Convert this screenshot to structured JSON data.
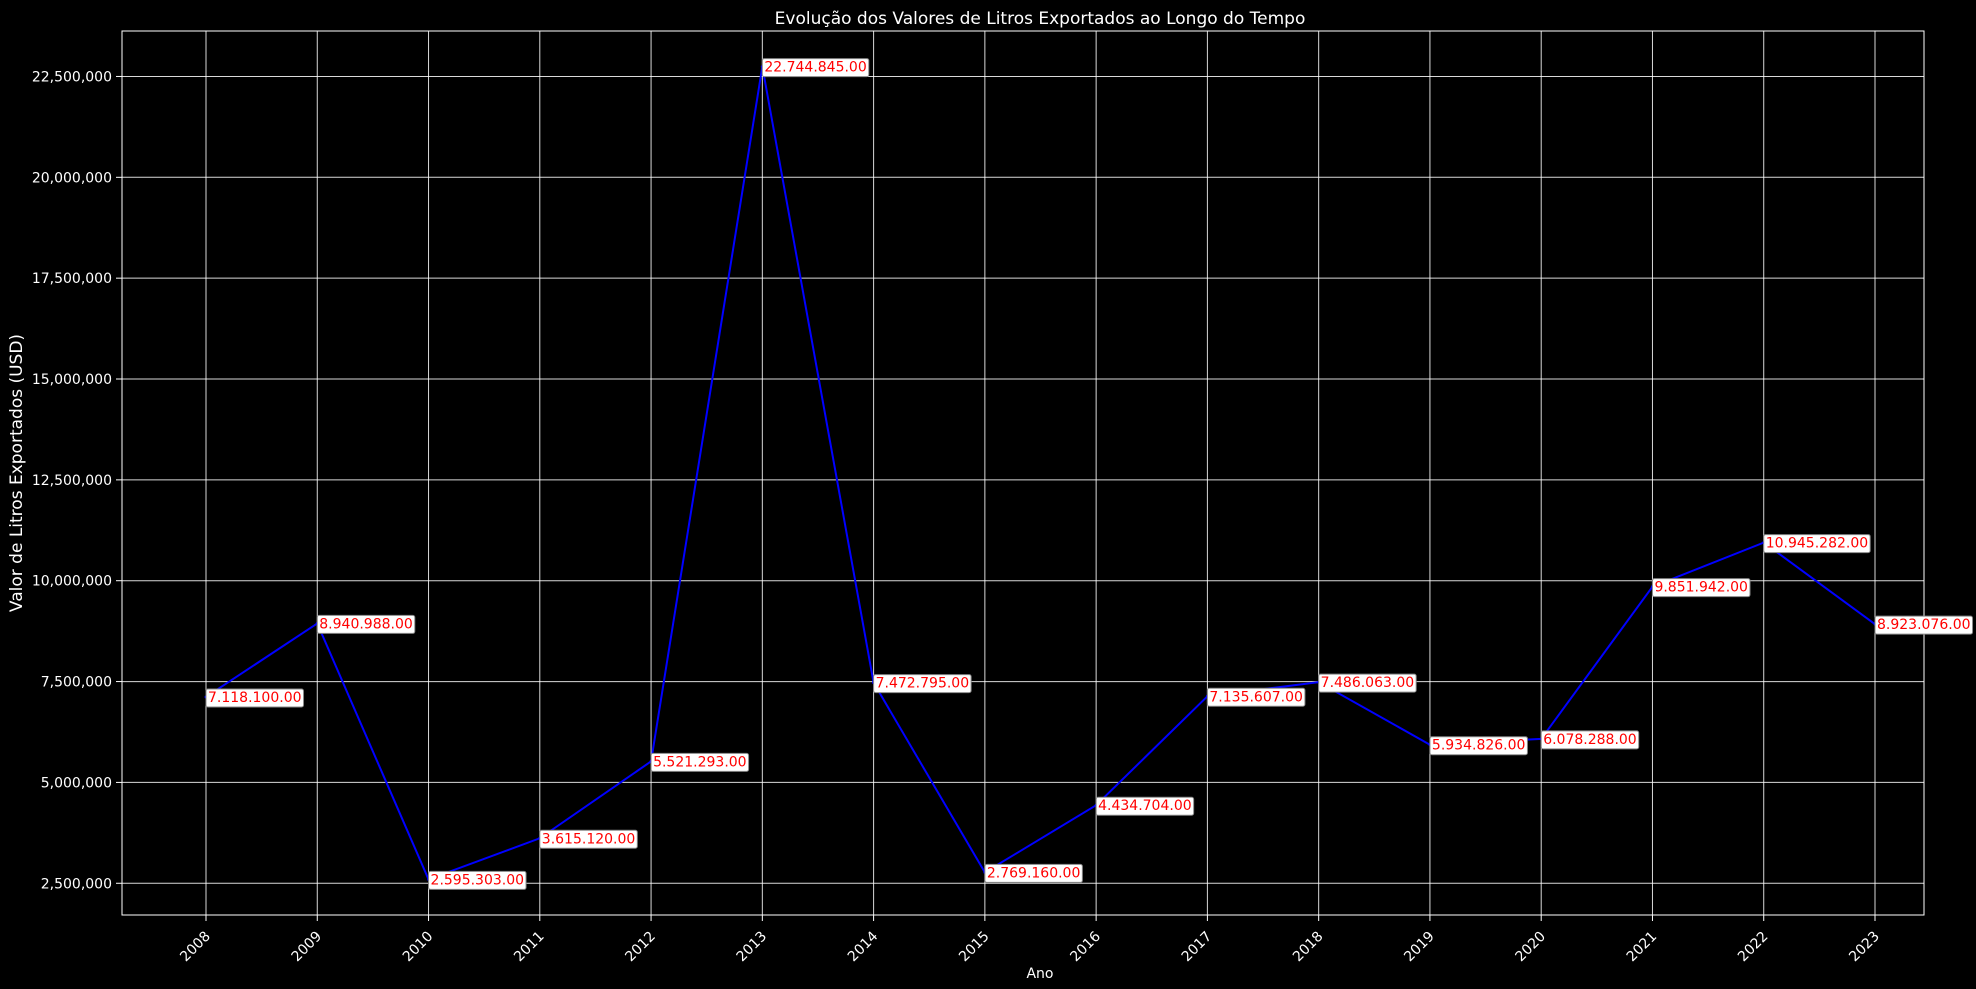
{
  "chart_data": {
    "type": "line",
    "title": "Evolução dos Valores de Litros Exportados ao Longo do Tempo",
    "xlabel": "Ano",
    "ylabel": "Valor de Litros Exportados (USD)",
    "categories": [
      "2008",
      "2009",
      "2010",
      "2011",
      "2012",
      "2013",
      "2014",
      "2015",
      "2016",
      "2017",
      "2018",
      "2019",
      "2020",
      "2021",
      "2022",
      "2023"
    ],
    "series": [
      {
        "values": [
          7118100,
          8940988,
          2595303,
          3615120,
          5521293,
          22744845,
          7472795,
          2769160,
          4434704,
          7135607,
          7486063,
          5934826,
          6078288,
          9851942,
          10945282,
          8923076
        ],
        "data_labels": [
          "7.118.100.00",
          "8.940.988.00",
          "2.595.303.00",
          "3.615.120.00",
          "5.521.293.00",
          "22.744.845.00",
          "7.472.795.00",
          "2.769.160.00",
          "4.434.704.00",
          "7.135.607.00",
          "7.486.063.00",
          "5.934.826.00",
          "6.078.288.00",
          "9.851.942.00",
          "10.945.282.00",
          "8.923.076.00"
        ],
        "color": "#0000ff"
      }
    ],
    "yticks": [
      2500000,
      5000000,
      7500000,
      10000000,
      12500000,
      15000000,
      17500000,
      20000000,
      22500000
    ],
    "ytick_labels": [
      "2,500,000",
      "5,000,000",
      "7,500,000",
      "10,000,000",
      "12,500,000",
      "15,000,000",
      "17,500,000",
      "20,000,000",
      "22,500,000"
    ],
    "ylim": [
      1713326,
      23626822
    ],
    "grid": true,
    "colors": {
      "background": "#000000",
      "grid": "#ffffff",
      "text": "#ffffff",
      "line": "#0000ff",
      "label_text": "#ff0000",
      "label_box": "#ffffff"
    }
  }
}
